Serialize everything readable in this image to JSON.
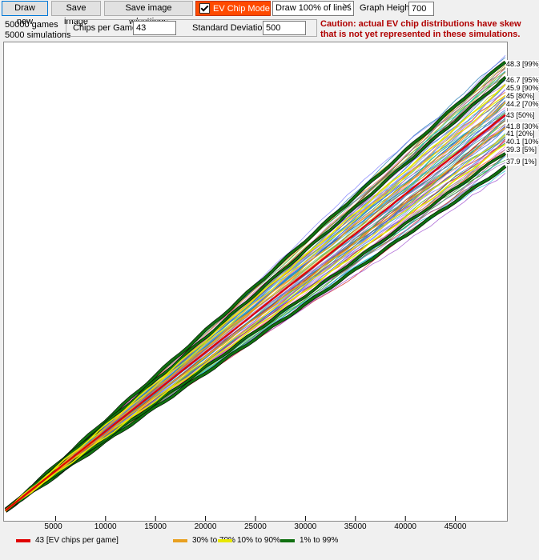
{
  "toolbar": {
    "draw_new": "Draw new",
    "save_image": "Save image",
    "save_image_settings": "Save image w/settings",
    "ev_chip_mode": "EV Chip Mode",
    "draw_lines": "Draw 100% of lines",
    "graph_height_label": "Graph Height:",
    "graph_height_value": "700"
  },
  "stats": {
    "games": "50000 games",
    "simulations": "5000 simulations"
  },
  "settings": {
    "chips_label": "Chips per Game",
    "chips_value": "43",
    "sd_label": "Standard Deviation",
    "sd_value": "500"
  },
  "caution": {
    "line1": "Caution: actual EV chip distributions have skew",
    "line2": "that is not yet represented in these simulations."
  },
  "colors": {
    "ev": "#e00000",
    "p30_70": "#e8a020",
    "p10_90": "#e8e800",
    "p1_99": "#107010"
  },
  "chart_data": {
    "type": "line",
    "x_max": 50000,
    "x_ticks": [
      "5000",
      "10000",
      "15000",
      "20000",
      "25000",
      "30000",
      "35000",
      "40000",
      "45000"
    ],
    "x_tick_values": [
      5000,
      10000,
      15000,
      20000,
      25000,
      30000,
      35000,
      40000,
      45000
    ],
    "percentile_labels": [
      {
        "pct": 99,
        "value": 48.3,
        "text": "48.3 [99%]"
      },
      {
        "pct": 95,
        "value": 46.7,
        "text": "46.7 [95%]"
      },
      {
        "pct": 90,
        "value": 45.9,
        "text": "45.9 [90%]"
      },
      {
        "pct": 80,
        "value": 45,
        "text": "45 [80%]"
      },
      {
        "pct": 70,
        "value": 44.2,
        "text": "44.2 [70%]"
      },
      {
        "pct": 50,
        "value": 43,
        "text": "43 [50%]"
      },
      {
        "pct": 30,
        "value": 41.8,
        "text": "41.8 [30%]"
      },
      {
        "pct": 20,
        "value": 41,
        "text": "41 [20%]"
      },
      {
        "pct": 10,
        "value": 40.1,
        "text": "40.1 [10%]"
      },
      {
        "pct": 5,
        "value": 39.3,
        "text": "39.3 [5%]"
      },
      {
        "pct": 1,
        "value": 37.9,
        "text": "37.9 [1%]"
      }
    ],
    "legend": [
      {
        "name": "43 [EV chips per game]",
        "color": "#e00000"
      },
      {
        "name": "30% to 70%",
        "color": "#e8a020"
      },
      {
        "name": "10% to 90%",
        "color": "#e8e800"
      },
      {
        "name": "1% to 99%",
        "color": "#107010"
      }
    ]
  }
}
